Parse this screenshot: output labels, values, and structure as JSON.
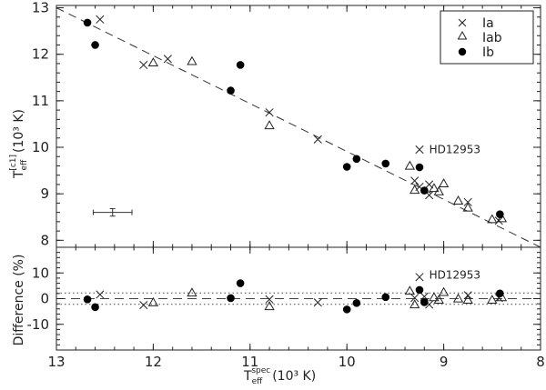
{
  "chart_data": [
    {
      "type": "scatter",
      "panel": "top",
      "xlabel": {
        "main": "T",
        "sub": "eff",
        "sup": "spec",
        "unit": "(10³ K)"
      },
      "ylabel": {
        "main": "T",
        "sub": "eff",
        "sup": "[c1]",
        "unit": "(10³ K)"
      },
      "xlim": [
        13,
        8
      ],
      "ylim": [
        7.85,
        13.05
      ],
      "x_ticks": [
        "13",
        "12",
        "11",
        "10",
        "9",
        "8"
      ],
      "y_ticks": [
        "8",
        "9",
        "10",
        "11",
        "12",
        "13"
      ],
      "y_tick_values": [
        8,
        9,
        10,
        11,
        12,
        13
      ],
      "legend": {
        "position": "top-right",
        "entries": [
          "Ia",
          "Iab",
          "Ib"
        ]
      },
      "reference_line": {
        "style": "dashed",
        "points": [
          [
            13,
            13
          ],
          [
            8,
            7.85
          ]
        ]
      },
      "annotation": {
        "text": "HD12953",
        "x": 9.15,
        "y": 9.95
      },
      "error_bar": {
        "x": 12.42,
        "y": 8.6,
        "xerr": 0.2,
        "yerr": 0.08
      },
      "series": [
        {
          "name": "Ia",
          "marker": "cross",
          "points": [
            [
              12.55,
              12.75
            ],
            [
              12.1,
              11.77
            ],
            [
              11.85,
              11.9
            ],
            [
              10.8,
              10.75
            ],
            [
              10.3,
              10.17
            ],
            [
              9.25,
              9.95
            ],
            [
              9.3,
              9.28
            ],
            [
              9.15,
              9.2
            ],
            [
              9.25,
              9.15
            ],
            [
              9.15,
              8.97
            ],
            [
              8.75,
              8.82
            ],
            [
              8.43,
              8.42
            ]
          ]
        },
        {
          "name": "Iab",
          "marker": "triangle",
          "points": [
            [
              12.0,
              11.82
            ],
            [
              11.6,
              11.85
            ],
            [
              10.8,
              10.47
            ],
            [
              9.35,
              9.6
            ],
            [
              9.3,
              9.08
            ],
            [
              9.1,
              9.12
            ],
            [
              9.05,
              9.05
            ],
            [
              9.0,
              9.22
            ],
            [
              8.85,
              8.85
            ],
            [
              8.75,
              8.7
            ],
            [
              8.5,
              8.45
            ],
            [
              8.4,
              8.47
            ]
          ]
        },
        {
          "name": "Ib",
          "marker": "filled-circle",
          "points": [
            [
              12.68,
              12.68
            ],
            [
              12.6,
              12.2
            ],
            [
              11.2,
              11.22
            ],
            [
              11.1,
              11.77
            ],
            [
              10.0,
              9.58
            ],
            [
              9.9,
              9.75
            ],
            [
              9.6,
              9.65
            ],
            [
              9.25,
              9.57
            ],
            [
              9.2,
              9.07
            ],
            [
              8.42,
              8.56
            ]
          ]
        }
      ]
    },
    {
      "type": "scatter",
      "panel": "bottom",
      "xlabel": {
        "main": "T",
        "sub": "eff",
        "sup": "spec",
        "unit": "(10³ K)"
      },
      "ylabel": "Difference (%)",
      "xlim": [
        13,
        8
      ],
      "ylim": [
        -20,
        20
      ],
      "x_ticks": [
        "13",
        "12",
        "11",
        "10",
        "9",
        "8"
      ],
      "x_tick_values": [
        13,
        12,
        11,
        10,
        9,
        8
      ],
      "y_ticks": [
        "10",
        "0",
        "-10"
      ],
      "y_tick_values": [
        10,
        0,
        -10
      ],
      "reference_lines": [
        {
          "style": "dashed",
          "y": 0
        },
        {
          "style": "dotted",
          "y": 2.2
        },
        {
          "style": "dotted",
          "y": -2.2
        }
      ],
      "annotation": {
        "text": "HD12953",
        "x": 9.15,
        "y": 9.2
      },
      "series": [
        {
          "name": "Ia",
          "marker": "cross",
          "points": [
            [
              12.55,
              1.6
            ],
            [
              12.1,
              -2.5
            ],
            [
              10.8,
              -0.3
            ],
            [
              10.3,
              -1.5
            ],
            [
              9.25,
              8.4
            ],
            [
              9.3,
              0.3
            ],
            [
              9.2,
              0.8
            ],
            [
              9.15,
              -2.3
            ],
            [
              8.75,
              1.3
            ],
            [
              8.43,
              0.3
            ]
          ]
        },
        {
          "name": "Iab",
          "marker": "triangle",
          "points": [
            [
              12.0,
              -1.5
            ],
            [
              11.6,
              2.3
            ],
            [
              10.8,
              -3.0
            ],
            [
              9.35,
              3.0
            ],
            [
              9.3,
              -2.3
            ],
            [
              9.1,
              0.5
            ],
            [
              9.05,
              -0.5
            ],
            [
              9.0,
              2.5
            ],
            [
              8.85,
              0.0
            ],
            [
              8.75,
              -0.5
            ],
            [
              8.5,
              -0.5
            ],
            [
              8.4,
              0.5
            ]
          ]
        },
        {
          "name": "Ib",
          "marker": "filled-circle",
          "points": [
            [
              12.68,
              -0.3
            ],
            [
              12.6,
              -3.3
            ],
            [
              11.2,
              0.2
            ],
            [
              11.1,
              6.0
            ],
            [
              10.0,
              -4.2
            ],
            [
              9.9,
              -1.7
            ],
            [
              9.6,
              0.6
            ],
            [
              9.25,
              3.4
            ],
            [
              9.2,
              -1.4
            ],
            [
              8.42,
              2.0
            ]
          ]
        }
      ]
    }
  ]
}
